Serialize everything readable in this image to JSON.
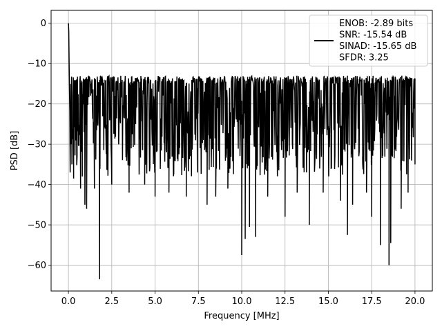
{
  "chart_data": {
    "type": "line",
    "title": "",
    "xlabel": "Frequency [MHz]",
    "ylabel": "PSD [dB]",
    "xlim": [
      -1.0,
      21.0
    ],
    "ylim": [
      -66.4,
      3.2
    ],
    "xticks": [
      0.0,
      2.5,
      5.0,
      7.5,
      10.0,
      12.5,
      15.0,
      17.5,
      20.0
    ],
    "xtick_labels": [
      "0.0",
      "2.5",
      "5.0",
      "7.5",
      "10.0",
      "12.5",
      "15.0",
      "17.5",
      "20.0"
    ],
    "yticks": [
      0,
      -10,
      -20,
      -30,
      -40,
      -50,
      -60
    ],
    "ytick_labels": [
      "0",
      "−10",
      "−20",
      "−30",
      "−40",
      "−50",
      "−60"
    ],
    "grid": true,
    "legend_position": "top-right",
    "legend_lines": [
      "ENOB: -2.89 bits",
      "SNR: -15.54 dB",
      "SINAD: -15.65 dB",
      "SFDR: 3.25"
    ],
    "series": [
      {
        "color": "#000000",
        "dense_noise": {
          "x_range": [
            0.0,
            20.0
          ],
          "upper_envelope_db": -13,
          "band_db": [
            -32,
            -15
          ],
          "typical_low_db": -38
        },
        "x": [
          0.0,
          0.02,
          0.04,
          0.06,
          0.08,
          0.1,
          0.15,
          0.2,
          0.3,
          0.5,
          0.7,
          0.8,
          0.95,
          1.05,
          1.5,
          1.8,
          2.5,
          3.5,
          4.4,
          5.0,
          5.8,
          6.8,
          8.0,
          8.5,
          9.2,
          10.0,
          10.2,
          10.45,
          10.8,
          11.5,
          12.5,
          13.2,
          13.9,
          14.7,
          15.7,
          16.1,
          16.4,
          17.2,
          17.5,
          18.0,
          18.5,
          18.6,
          19.2,
          19.6,
          20.0
        ],
        "y": [
          0.0,
          -2.0,
          -10.0,
          -16.5,
          -22.0,
          -37.0,
          -30.0,
          -35.0,
          -38.5,
          -33.0,
          -41.0,
          -38.0,
          -45.0,
          -46.0,
          -41.0,
          -63.5,
          -40.0,
          -42.0,
          -40.0,
          -43.0,
          -42.0,
          -43.0,
          -45.0,
          -43.0,
          -41.0,
          -57.5,
          -53.5,
          -50.5,
          -53.0,
          -43.0,
          -48.0,
          -42.0,
          -50.0,
          -42.0,
          -44.0,
          -52.5,
          -45.0,
          -42.0,
          -48.0,
          -55.0,
          -60.0,
          -54.5,
          -46.0,
          -42.0,
          -35.0
        ]
      }
    ]
  }
}
